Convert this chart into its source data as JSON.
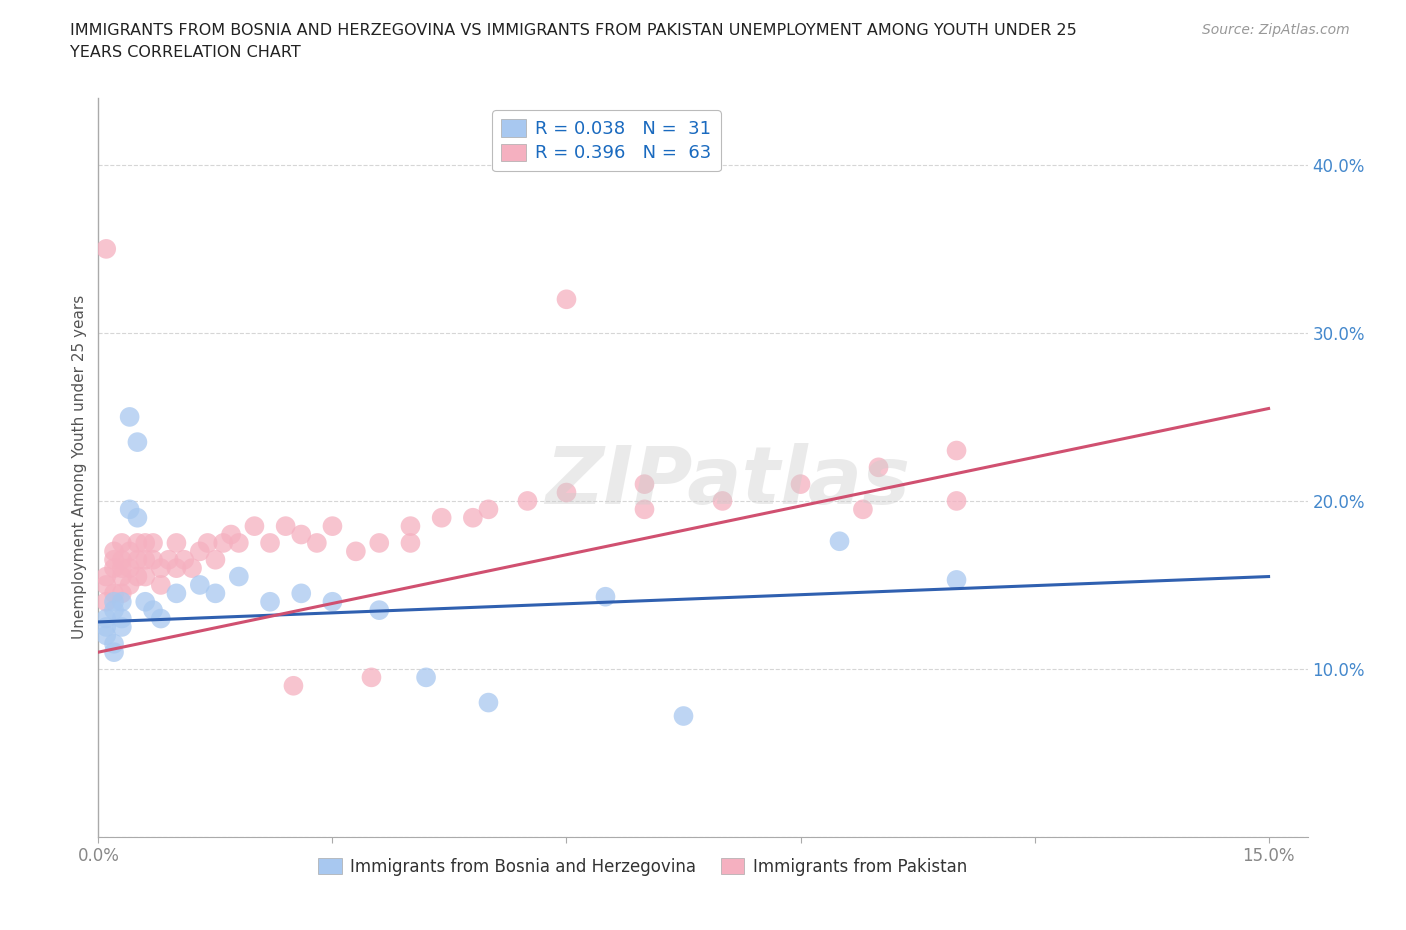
{
  "title_line1": "IMMIGRANTS FROM BOSNIA AND HERZEGOVINA VS IMMIGRANTS FROM PAKISTAN UNEMPLOYMENT AMONG YOUTH UNDER 25",
  "title_line2": "YEARS CORRELATION CHART",
  "source": "Source: ZipAtlas.com",
  "ylabel": "Unemployment Among Youth under 25 years",
  "xlim": [
    0.0,
    0.155
  ],
  "ylim": [
    0.0,
    0.44
  ],
  "ytick_vals": [
    0.0,
    0.1,
    0.2,
    0.3,
    0.4
  ],
  "ytick_labels": [
    "",
    "10.0%",
    "20.0%",
    "30.0%",
    "40.0%"
  ],
  "xtick_vals": [
    0.0,
    0.03,
    0.06,
    0.09,
    0.12,
    0.15
  ],
  "xtick_labels": [
    "0.0%",
    "",
    "",
    "",
    "",
    "15.0%"
  ],
  "grid_color": "#cccccc",
  "background_color": "#ffffff",
  "watermark": "ZIPatlas",
  "bosnia_color": "#a8c8f0",
  "pakistan_color": "#f5b0c0",
  "bosnia_line_color": "#3060b0",
  "pakistan_line_color": "#d05070",
  "bosnia_label": "Immigrants from Bosnia and Herzegovina",
  "pakistan_label": "Immigrants from Pakistan",
  "bosnia_x": [
    0.001,
    0.001,
    0.001,
    0.002,
    0.002,
    0.002,
    0.002,
    0.003,
    0.003,
    0.003,
    0.004,
    0.004,
    0.005,
    0.005,
    0.006,
    0.007,
    0.008,
    0.01,
    0.013,
    0.015,
    0.018,
    0.022,
    0.026,
    0.03,
    0.036,
    0.042,
    0.05,
    0.065,
    0.075,
    0.095,
    0.11
  ],
  "bosnia_y": [
    0.13,
    0.125,
    0.12,
    0.135,
    0.14,
    0.115,
    0.11,
    0.14,
    0.13,
    0.125,
    0.195,
    0.25,
    0.235,
    0.19,
    0.14,
    0.135,
    0.13,
    0.145,
    0.15,
    0.145,
    0.155,
    0.14,
    0.145,
    0.14,
    0.135,
    0.095,
    0.08,
    0.143,
    0.072,
    0.176,
    0.153
  ],
  "pakistan_x": [
    0.001,
    0.001,
    0.001,
    0.001,
    0.002,
    0.002,
    0.002,
    0.002,
    0.003,
    0.003,
    0.003,
    0.003,
    0.003,
    0.004,
    0.004,
    0.004,
    0.005,
    0.005,
    0.005,
    0.006,
    0.006,
    0.006,
    0.007,
    0.007,
    0.008,
    0.008,
    0.009,
    0.01,
    0.01,
    0.011,
    0.012,
    0.013,
    0.014,
    0.015,
    0.016,
    0.017,
    0.018,
    0.02,
    0.022,
    0.024,
    0.026,
    0.028,
    0.03,
    0.033,
    0.036,
    0.04,
    0.044,
    0.05,
    0.055,
    0.06,
    0.07,
    0.08,
    0.09,
    0.1,
    0.11,
    0.04,
    0.048,
    0.06,
    0.07,
    0.098,
    0.11,
    0.035,
    0.025
  ],
  "pakistan_y": [
    0.35,
    0.155,
    0.15,
    0.14,
    0.17,
    0.165,
    0.16,
    0.145,
    0.175,
    0.165,
    0.16,
    0.155,
    0.145,
    0.17,
    0.16,
    0.15,
    0.175,
    0.165,
    0.155,
    0.175,
    0.165,
    0.155,
    0.175,
    0.165,
    0.16,
    0.15,
    0.165,
    0.175,
    0.16,
    0.165,
    0.16,
    0.17,
    0.175,
    0.165,
    0.175,
    0.18,
    0.175,
    0.185,
    0.175,
    0.185,
    0.18,
    0.175,
    0.185,
    0.17,
    0.175,
    0.185,
    0.19,
    0.195,
    0.2,
    0.205,
    0.21,
    0.2,
    0.21,
    0.22,
    0.23,
    0.175,
    0.19,
    0.32,
    0.195,
    0.195,
    0.2,
    0.095,
    0.09
  ],
  "bosnia_line_x": [
    0.0,
    0.15
  ],
  "bosnia_line_y": [
    0.128,
    0.155
  ],
  "pakistan_line_x": [
    0.0,
    0.15
  ],
  "pakistan_line_y": [
    0.11,
    0.255
  ]
}
